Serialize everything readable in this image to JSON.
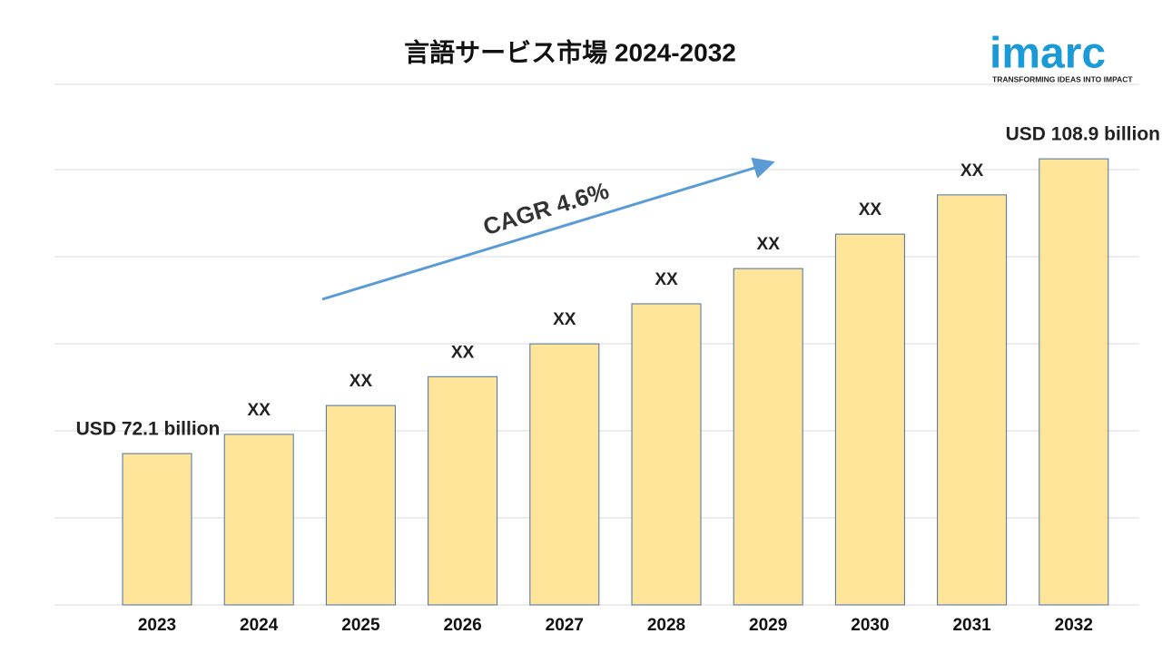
{
  "chart_data": {
    "type": "bar",
    "title": "言語サービス市場 2024-2032",
    "categories": [
      "2023",
      "2024",
      "2025",
      "2026",
      "2027",
      "2028",
      "2029",
      "2030",
      "2031",
      "2032"
    ],
    "values": [
      72.1,
      74.5,
      78.1,
      81.7,
      85.8,
      90.8,
      95.2,
      99.5,
      104.4,
      108.9
    ],
    "value_labels": [
      "USD 72.1 billion",
      "XX",
      "XX",
      "XX",
      "XX",
      "XX",
      "XX",
      "XX",
      "XX",
      "USD 108.9 billion"
    ],
    "color": "#fee599",
    "ylim": [
      53.2,
      118.2
    ],
    "annotation": "CAGR 4.6%",
    "logo": {
      "name": "imarc",
      "tagline": "TRANSFORMING IDEAS INTO IMPACT"
    }
  }
}
